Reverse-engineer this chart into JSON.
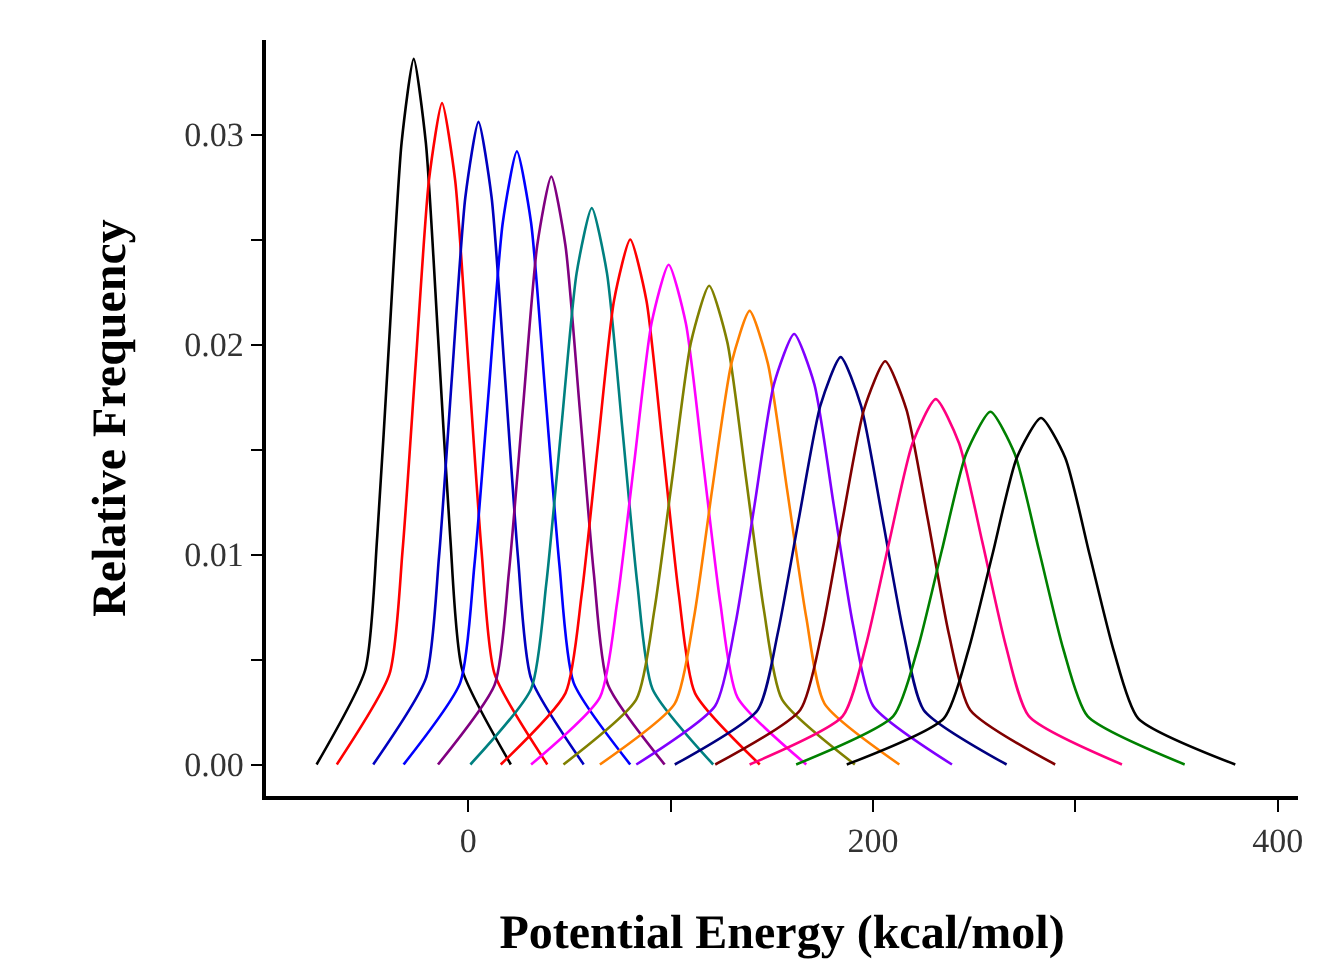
{
  "chart_data": {
    "type": "line",
    "xlabel": "Potential Energy (kcal/mol)",
    "ylabel": "Relative Frequency",
    "xlim": [
      -100,
      410
    ],
    "ylim": [
      -0.0015,
      0.0345
    ],
    "xticks": [
      0,
      {
        "value": 100,
        "label": null
      },
      200,
      {
        "value": 300,
        "label": null
      },
      400
    ],
    "yticks": [
      {
        "value": 0,
        "label": "0.00"
      },
      {
        "value": 0.005,
        "label": null
      },
      {
        "value": 0.01,
        "label": "0.01"
      },
      {
        "value": 0.015,
        "label": null
      },
      {
        "value": 0.02,
        "label": "0.02"
      },
      {
        "value": 0.025,
        "label": null
      },
      {
        "value": 0.03,
        "label": "0.03"
      }
    ],
    "marker": "none",
    "line_style": "solid",
    "series": [
      {
        "color": "#000000",
        "x": [
          -75,
          -51,
          -45,
          -39,
          -33,
          -27,
          -21,
          -15,
          -9,
          -3,
          21
        ],
        "values": [
          0,
          0.0045,
          0.0109,
          0.0204,
          0.0296,
          0.0336,
          0.0296,
          0.0204,
          0.0109,
          0.0045,
          0
        ]
      },
      {
        "color": "#ff0000",
        "x": [
          -65,
          -39,
          -32.5,
          -26,
          -19.5,
          -13,
          -6.5,
          0,
          6.5,
          13,
          39
        ],
        "values": [
          0,
          0.0043,
          0.0102,
          0.0191,
          0.0278,
          0.0315,
          0.0278,
          0.0191,
          0.0102,
          0.0043,
          0
        ]
      },
      {
        "color": "#0000c0",
        "x": [
          -47,
          -21,
          -14.5,
          -8,
          -1.5,
          5,
          11.5,
          18,
          24.5,
          31,
          57
        ],
        "values": [
          0,
          0.0041,
          0.0099,
          0.0186,
          0.027,
          0.0306,
          0.027,
          0.0186,
          0.0099,
          0.0041,
          0
        ]
      },
      {
        "color": "#0000ff",
        "x": [
          -32,
          -4,
          3,
          10,
          17,
          24,
          31,
          38,
          45,
          52,
          80
        ],
        "values": [
          0,
          0.0039,
          0.0095,
          0.0177,
          0.0258,
          0.0292,
          0.0258,
          0.0177,
          0.0095,
          0.0039,
          0
        ]
      },
      {
        "color": "#800080",
        "x": [
          -15,
          13,
          20,
          27,
          34,
          41,
          48,
          55,
          62,
          69,
          97
        ],
        "values": [
          0,
          0.0038,
          0.0091,
          0.017,
          0.0247,
          0.028,
          0.0247,
          0.017,
          0.0091,
          0.0038,
          0
        ]
      },
      {
        "color": "#008080",
        "x": [
          1,
          31,
          38.5,
          46,
          53.5,
          61,
          68.5,
          76,
          83.5,
          91,
          121
        ],
        "values": [
          0,
          0.0036,
          0.0086,
          0.0161,
          0.0234,
          0.0265,
          0.0234,
          0.0161,
          0.0086,
          0.0036,
          0
        ]
      },
      {
        "color": "#ff0000",
        "x": [
          16,
          48,
          56,
          64,
          72,
          80,
          88,
          96,
          104,
          112,
          144
        ],
        "values": [
          0,
          0.0034,
          0.0081,
          0.0152,
          0.0221,
          0.025,
          0.0221,
          0.0152,
          0.0081,
          0.0034,
          0
        ]
      },
      {
        "color": "#ff00ff",
        "x": [
          31,
          65,
          73.5,
          82,
          90.5,
          99,
          107.5,
          116,
          124.5,
          133,
          167
        ],
        "values": [
          0,
          0.0032,
          0.0077,
          0.0144,
          0.021,
          0.0238,
          0.021,
          0.0144,
          0.0077,
          0.0032,
          0
        ]
      },
      {
        "color": "#808000",
        "x": [
          47,
          83,
          92,
          101,
          110,
          119,
          128,
          137,
          146,
          155,
          191
        ],
        "values": [
          0,
          0.0031,
          0.0074,
          0.0138,
          0.0201,
          0.0228,
          0.0201,
          0.0138,
          0.0074,
          0.0031,
          0
        ]
      },
      {
        "color": "#ff8000",
        "x": [
          65,
          102,
          111.5,
          120.5,
          130,
          139,
          148,
          157.5,
          167,
          176,
          213
        ],
        "values": [
          0,
          0.0029,
          0.007,
          0.0131,
          0.0191,
          0.0216,
          0.0191,
          0.0131,
          0.007,
          0.0029,
          0
        ]
      },
      {
        "color": "#8000ff",
        "x": [
          83,
          122,
          132,
          141.5,
          151,
          161,
          171,
          180.5,
          190,
          200,
          239
        ],
        "values": [
          0,
          0.0028,
          0.0067,
          0.0124,
          0.0181,
          0.0205,
          0.0181,
          0.0124,
          0.0067,
          0.0028,
          0
        ]
      },
      {
        "color": "#000080",
        "x": [
          102,
          143,
          153,
          163.5,
          174,
          184,
          194,
          204.5,
          215,
          225,
          266
        ],
        "values": [
          0,
          0.0026,
          0.0063,
          0.0118,
          0.0171,
          0.0194,
          0.0171,
          0.0118,
          0.0063,
          0.0026,
          0
        ]
      },
      {
        "color": "#800000",
        "x": [
          122,
          164,
          174.5,
          185,
          195.5,
          206,
          216.5,
          227,
          237.5,
          248,
          290
        ],
        "values": [
          0,
          0.0026,
          0.0062,
          0.0117,
          0.0169,
          0.0192,
          0.0169,
          0.0117,
          0.0062,
          0.0026,
          0
        ]
      },
      {
        "color": "#ff0080",
        "x": [
          139,
          185,
          196.5,
          208,
          219.5,
          231,
          242.5,
          254,
          265.5,
          277,
          323
        ],
        "values": [
          0,
          0.0023,
          0.0057,
          0.0106,
          0.0153,
          0.0174,
          0.0153,
          0.0106,
          0.0057,
          0.0023,
          0
        ]
      },
      {
        "color": "#008000",
        "x": [
          162,
          210,
          222,
          234,
          246,
          258,
          270,
          282,
          294,
          306,
          354
        ],
        "values": [
          0,
          0.0023,
          0.0055,
          0.0102,
          0.0148,
          0.0168,
          0.0148,
          0.0102,
          0.0055,
          0.0023,
          0
        ]
      },
      {
        "color": "#000000",
        "x": [
          187,
          235,
          247,
          259,
          271,
          283,
          295,
          307,
          319,
          331,
          379
        ],
        "values": [
          0,
          0.0022,
          0.0054,
          0.01,
          0.0146,
          0.0165,
          0.0146,
          0.01,
          0.0054,
          0.0022,
          0
        ]
      }
    ]
  }
}
